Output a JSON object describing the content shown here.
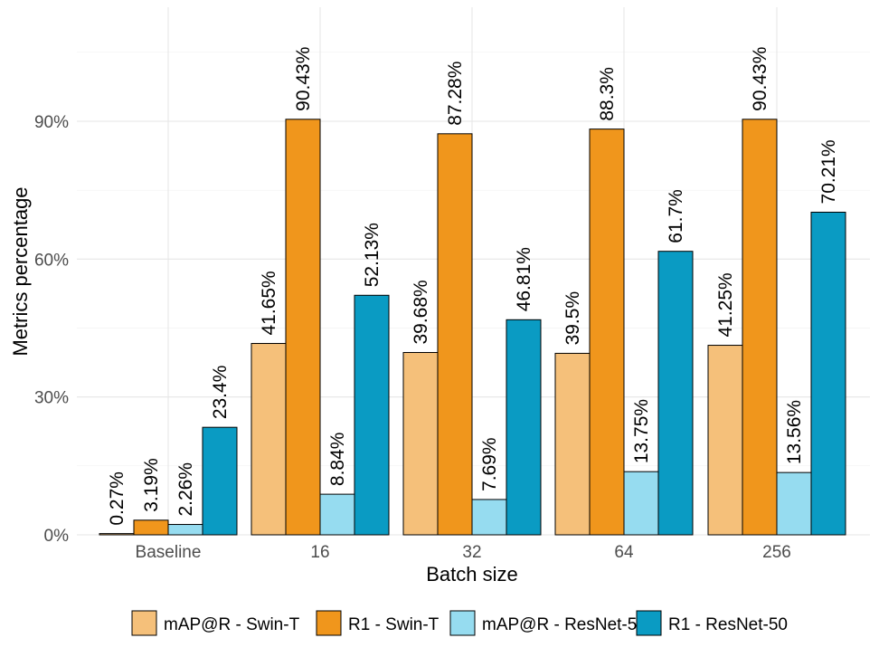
{
  "chart_data": {
    "type": "bar",
    "title": "",
    "xlabel": "Batch size",
    "ylabel": "Metrics percentage",
    "categories": [
      "Baseline",
      "16",
      "32",
      "64",
      "256"
    ],
    "y_ticks": [
      "0%",
      "30%",
      "60%",
      "90%"
    ],
    "ylim": [
      0,
      115
    ],
    "grid": true,
    "legend_position": "bottom",
    "series": [
      {
        "name": "mAP@R - Swin-T",
        "color": "#f5c07a",
        "values": [
          0.27,
          41.65,
          39.68,
          39.5,
          41.25
        ],
        "labels": [
          "0.27%",
          "41.65%",
          "39.68%",
          "39.5%",
          "41.25%"
        ]
      },
      {
        "name": "R1 - Swin-T",
        "color": "#f0961c",
        "values": [
          3.19,
          90.43,
          87.28,
          88.3,
          90.43
        ],
        "labels": [
          "3.19%",
          "90.43%",
          "87.28%",
          "88.3%",
          "90.43%"
        ]
      },
      {
        "name": "mAP@R - ResNet-50",
        "color": "#96dcf0",
        "values": [
          2.26,
          8.84,
          7.69,
          13.75,
          13.56
        ],
        "labels": [
          "2.26%",
          "8.84%",
          "7.69%",
          "13.75%",
          "13.56%"
        ]
      },
      {
        "name": "R1 - ResNet-50",
        "color": "#0a9bc3",
        "values": [
          23.4,
          52.13,
          46.81,
          61.7,
          70.21
        ],
        "labels": [
          "23.4%",
          "52.13%",
          "46.81%",
          "61.7%",
          "70.21%"
        ]
      }
    ]
  }
}
